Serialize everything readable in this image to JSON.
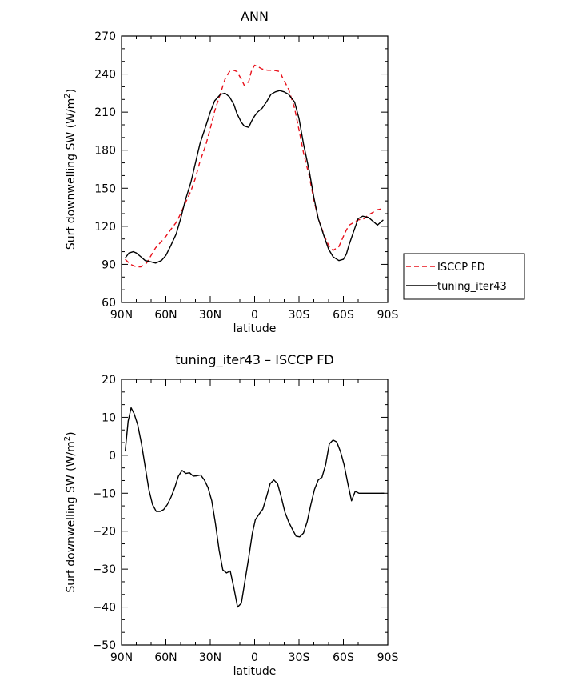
{
  "chart_data": [
    {
      "type": "line",
      "title": "ANN",
      "xlabel": "latitude",
      "ylabel": "Surf downwelling SW (W/m",
      "ylabel_sup": "2",
      "ylabel_tail": ")",
      "xlim": [
        90,
        -90
      ],
      "ylim": [
        60,
        270
      ],
      "xticks": [
        90,
        60,
        30,
        0,
        -30,
        -60,
        -90
      ],
      "xtick_labels": [
        "90N",
        "60N",
        "30N",
        "0",
        "30S",
        "60S",
        "90S"
      ],
      "yticks": [
        60,
        90,
        120,
        150,
        180,
        210,
        240,
        270
      ],
      "ytick_labels": [
        "60",
        "90",
        "120",
        "150",
        "180",
        "210",
        "240",
        "270"
      ],
      "legend": "right",
      "series": [
        {
          "name": "ISCCP FD",
          "color": "#e8101a",
          "style": "dashed",
          "x": [
            87.5,
            84,
            80,
            77,
            73,
            70,
            67,
            63,
            60,
            57,
            53,
            50,
            47,
            43,
            40,
            37,
            33,
            30,
            27,
            23,
            20,
            17,
            14,
            12,
            9,
            7,
            4,
            2,
            0,
            -2,
            -5,
            -9,
            -13,
            -17,
            -19,
            -23,
            -27,
            -30,
            -33,
            -37,
            -40,
            -43,
            -47,
            -50,
            -53,
            -57,
            -60,
            -62,
            -64,
            -67,
            -70,
            -74,
            -77,
            -80,
            -83,
            -87
          ],
          "values": [
            94,
            90,
            88,
            88,
            91,
            97,
            103,
            108,
            112,
            117,
            123,
            130,
            138,
            148,
            158,
            171,
            184,
            197,
            211,
            225,
            236,
            242,
            243,
            242,
            236,
            231,
            234,
            243,
            247,
            246,
            244,
            243,
            243,
            242,
            237,
            228,
            213,
            196,
            178,
            159,
            141,
            126,
            113,
            105,
            101,
            104,
            112,
            117,
            121,
            123,
            125,
            126,
            129,
            131,
            133,
            134
          ]
        },
        {
          "name": "tuning_iter43",
          "color": "#000000",
          "style": "solid",
          "x": [
            87.5,
            85,
            82,
            80,
            77,
            74,
            70,
            67,
            63,
            60,
            57,
            53,
            50,
            47,
            43,
            40,
            37,
            33,
            30,
            27,
            23,
            20,
            17,
            14,
            12,
            9,
            7,
            4,
            2,
            0,
            -2,
            -5,
            -8,
            -11,
            -14,
            -17,
            -20,
            -23,
            -27,
            -30,
            -33,
            -37,
            -40,
            -43,
            -47,
            -50,
            -53,
            -57,
            -60,
            -62,
            -64,
            -67,
            -70,
            -73,
            -77,
            -80,
            -83,
            -87
          ],
          "values": [
            95,
            99,
            100,
            99,
            96,
            93,
            92,
            91,
            93,
            97,
            104,
            114,
            126,
            140,
            155,
            170,
            185,
            199,
            210,
            219,
            224,
            225,
            222,
            216,
            209,
            202,
            199,
            198,
            203,
            207,
            210,
            213,
            218,
            224,
            226,
            227,
            226,
            224,
            218,
            205,
            185,
            163,
            143,
            126,
            112,
            102,
            96,
            93,
            94,
            98,
            106,
            116,
            126,
            128,
            127,
            124,
            121,
            125
          ]
        }
      ]
    },
    {
      "type": "line",
      "title": "tuning_iter43 – ISCCP FD",
      "xlabel": "latitude",
      "ylabel": "Surf downwelling SW (W/m",
      "ylabel_sup": "2",
      "ylabel_tail": ")",
      "xlim": [
        90,
        -90
      ],
      "ylim": [
        -50,
        20
      ],
      "xticks": [
        90,
        60,
        30,
        0,
        -30,
        -60,
        -90
      ],
      "xtick_labels": [
        "90N",
        "60N",
        "30N",
        "0",
        "30S",
        "60S",
        "90S"
      ],
      "yticks": [
        -50,
        -40,
        -30,
        -20,
        -10,
        0,
        10,
        20
      ],
      "ytick_labels": [
        "−50",
        "−40",
        "−30",
        "−20",
        "−10",
        "0",
        "10",
        "20"
      ],
      "series": [
        {
          "name": "",
          "color": "#000000",
          "style": "solid",
          "x": [
            87.5,
            85.5,
            83.5,
            81.5,
            79,
            76.5,
            74,
            71.5,
            69,
            66.5,
            64,
            61.5,
            59,
            56.5,
            54,
            51.5,
            49,
            46.5,
            44,
            41.5,
            39,
            36.5,
            34,
            31.5,
            29,
            26.5,
            24,
            21.5,
            19,
            16.5,
            14,
            11.5,
            9,
            6.5,
            4,
            1.5,
            -0.5,
            -3,
            -5.5,
            -8,
            -10.5,
            -13,
            -15.5,
            -18,
            -20.5,
            -23,
            -25.5,
            -28,
            -30.5,
            -33,
            -35.5,
            -38,
            -40.5,
            -43,
            -45.5,
            -48,
            -50.5,
            -53,
            -55.5,
            -58,
            -60.5,
            -63,
            -65.5,
            -68,
            -70.5,
            -73,
            -75.5,
            -78,
            -80.5,
            -83,
            -85.5,
            -87.5
          ],
          "values": [
            1,
            9,
            12.5,
            11,
            8,
            3,
            -3,
            -9,
            -13,
            -14.8,
            -14.8,
            -14.3,
            -13,
            -11,
            -8.5,
            -5.5,
            -4,
            -4.8,
            -4.6,
            -5.5,
            -5.4,
            -5.2,
            -6.5,
            -8.5,
            -12,
            -18,
            -25,
            -30.2,
            -31,
            -30.5,
            -35,
            -40,
            -39,
            -33,
            -27,
            -20.5,
            -17,
            -15.5,
            -14.2,
            -11,
            -7.5,
            -6.5,
            -7.5,
            -11,
            -15,
            -17.5,
            -19.5,
            -21.3,
            -21.5,
            -20.5,
            -17.5,
            -13,
            -9,
            -6.5,
            -5.8,
            -2.5,
            3,
            4,
            3.5,
            1,
            -2.5,
            -7.5,
            -12,
            -9.5,
            -10,
            -10,
            -10,
            -10,
            -10,
            -10,
            -10,
            -10
          ]
        }
      ]
    }
  ]
}
